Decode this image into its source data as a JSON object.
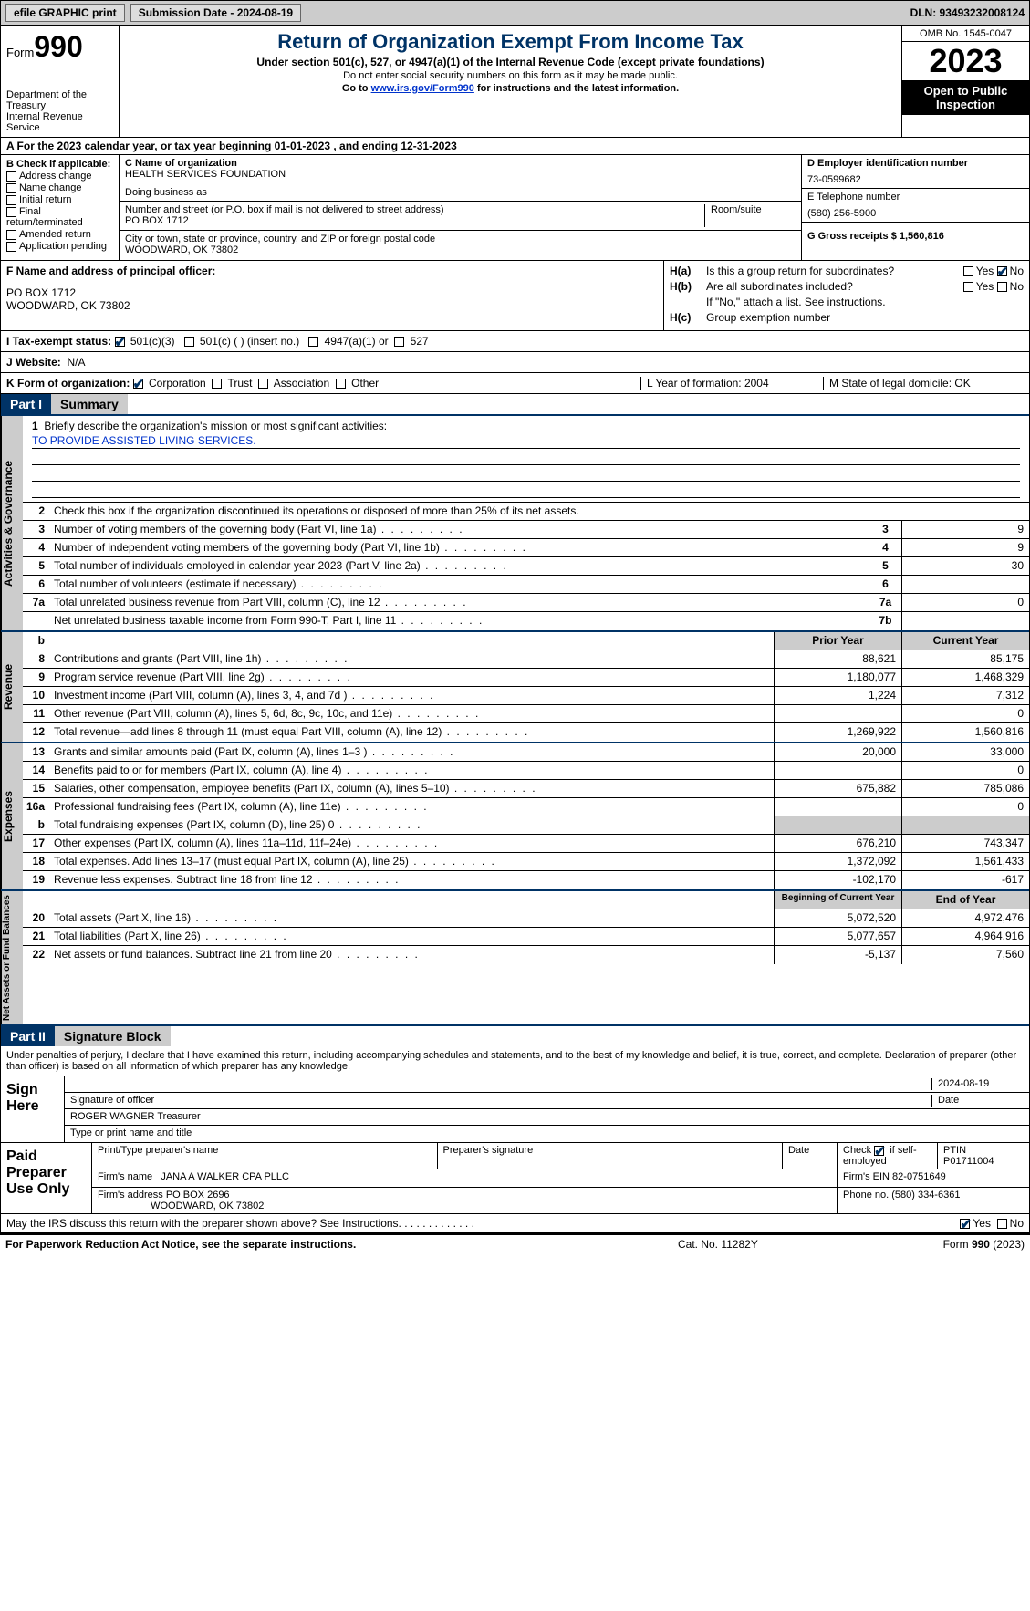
{
  "topbar": {
    "efile": "efile GRAPHIC print",
    "submission_label": "Submission Date - 2024-08-19",
    "dln_label": "DLN: 93493232008124"
  },
  "header": {
    "form_prefix": "Form",
    "form_num": "990",
    "dept": "Department of the Treasury",
    "irs": "Internal Revenue Service",
    "title": "Return of Organization Exempt From Income Tax",
    "sub": "Under section 501(c), 527, or 4947(a)(1) of the Internal Revenue Code (except private foundations)",
    "ssn": "Do not enter social security numbers on this form as it may be made public.",
    "goto": "Go to ",
    "goto_link": "www.irs.gov/Form990",
    "goto_after": " for instructions and the latest information.",
    "omb": "OMB No. 1545-0047",
    "year": "2023",
    "inspect": "Open to Public Inspection"
  },
  "row_a": "A For the 2023 calendar year, or tax year beginning 01-01-2023   , and ending 12-31-2023",
  "col_b": {
    "hdr": "B Check if applicable:",
    "items": [
      "Address change",
      "Name change",
      "Initial return",
      "Final return/terminated",
      "Amended return",
      "Application pending"
    ]
  },
  "col_c": {
    "name_lbl": "C Name of organization",
    "name": "HEALTH SERVICES FOUNDATION",
    "dba_lbl": "Doing business as",
    "addr_lbl": "Number and street (or P.O. box if mail is not delivered to street address)",
    "addr": "PO BOX 1712",
    "room_lbl": "Room/suite",
    "city_lbl": "City or town, state or province, country, and ZIP or foreign postal code",
    "city": "WOODWARD, OK   73802"
  },
  "col_d": {
    "ein_lbl": "D Employer identification number",
    "ein": "73-0599682",
    "tel_lbl": "E Telephone number",
    "tel": "(580) 256-5900",
    "gross_lbl": "G Gross receipts $ 1,560,816"
  },
  "row_f": {
    "lbl": "F  Name and address of principal officer:",
    "addr1": "PO BOX 1712",
    "addr2": "WOODWARD, OK   73802"
  },
  "row_h": {
    "ha_lbl": "H(a)",
    "ha_txt": "Is this a group return for subordinates?",
    "hb_lbl": "H(b)",
    "hb_txt": "Are all subordinates included?",
    "hb_note": "If \"No,\" attach a list. See instructions.",
    "hc_lbl": "H(c)",
    "hc_txt": "Group exemption number",
    "yes": "Yes",
    "no": "No"
  },
  "row_i": {
    "lbl": "I   Tax-exempt status:",
    "opt1": "501(c)(3)",
    "opt2": "501(c) (  ) (insert no.)",
    "opt3": "4947(a)(1) or",
    "opt4": "527"
  },
  "row_j": {
    "lbl": "J   Website:",
    "val": "N/A"
  },
  "row_k": {
    "lbl": "K Form of organization:",
    "opts": [
      "Corporation",
      "Trust",
      "Association",
      "Other"
    ],
    "l_lbl": "L Year of formation: 2004",
    "m_lbl": "M State of legal domicile: OK"
  },
  "part1": {
    "hdr": "Part I",
    "title": "Summary"
  },
  "mission": {
    "num": "1",
    "lbl": "Briefly describe the organization's mission or most significant activities:",
    "txt": "TO PROVIDE ASSISTED LIVING SERVICES."
  },
  "line2": {
    "num": "2",
    "txt": "Check this box     if the organization discontinued its operations or disposed of more than 25% of its net assets."
  },
  "sections": {
    "gov": "Activities & Governance",
    "rev": "Revenue",
    "exp": "Expenses",
    "net": "Net Assets or Fund Balances"
  },
  "lines_gov": [
    {
      "n": "3",
      "d": "Number of voting members of the governing body (Part VI, line 1a)",
      "b": "3",
      "v": "9"
    },
    {
      "n": "4",
      "d": "Number of independent voting members of the governing body (Part VI, line 1b)",
      "b": "4",
      "v": "9"
    },
    {
      "n": "5",
      "d": "Total number of individuals employed in calendar year 2023 (Part V, line 2a)",
      "b": "5",
      "v": "30"
    },
    {
      "n": "6",
      "d": "Total number of volunteers (estimate if necessary)",
      "b": "6",
      "v": ""
    },
    {
      "n": "7a",
      "d": "Total unrelated business revenue from Part VIII, column (C), line 12",
      "b": "7a",
      "v": "0"
    },
    {
      "n": "",
      "d": "Net unrelated business taxable income from Form 990-T, Part I, line 11",
      "b": "7b",
      "v": ""
    }
  ],
  "hdr_rev": {
    "b": "b",
    "d": "",
    "v1": "Prior Year",
    "v2": "Current Year"
  },
  "lines_rev": [
    {
      "n": "8",
      "d": "Contributions and grants (Part VIII, line 1h)",
      "v1": "88,621",
      "v2": "85,175"
    },
    {
      "n": "9",
      "d": "Program service revenue (Part VIII, line 2g)",
      "v1": "1,180,077",
      "v2": "1,468,329"
    },
    {
      "n": "10",
      "d": "Investment income (Part VIII, column (A), lines 3, 4, and 7d )",
      "v1": "1,224",
      "v2": "7,312"
    },
    {
      "n": "11",
      "d": "Other revenue (Part VIII, column (A), lines 5, 6d, 8c, 9c, 10c, and 11e)",
      "v1": "",
      "v2": "0"
    },
    {
      "n": "12",
      "d": "Total revenue—add lines 8 through 11 (must equal Part VIII, column (A), line 12)",
      "v1": "1,269,922",
      "v2": "1,560,816"
    }
  ],
  "lines_exp": [
    {
      "n": "13",
      "d": "Grants and similar amounts paid (Part IX, column (A), lines 1–3 )",
      "v1": "20,000",
      "v2": "33,000"
    },
    {
      "n": "14",
      "d": "Benefits paid to or for members (Part IX, column (A), line 4)",
      "v1": "",
      "v2": "0"
    },
    {
      "n": "15",
      "d": "Salaries, other compensation, employee benefits (Part IX, column (A), lines 5–10)",
      "v1": "675,882",
      "v2": "785,086"
    },
    {
      "n": "16a",
      "d": "Professional fundraising fees (Part IX, column (A), line 11e)",
      "v1": "",
      "v2": "0"
    },
    {
      "n": "b",
      "d": "Total fundraising expenses (Part IX, column (D), line 25) 0",
      "v1": "__GRAY__",
      "v2": "__GRAY__"
    },
    {
      "n": "17",
      "d": "Other expenses (Part IX, column (A), lines 11a–11d, 11f–24e)",
      "v1": "676,210",
      "v2": "743,347"
    },
    {
      "n": "18",
      "d": "Total expenses. Add lines 13–17 (must equal Part IX, column (A), line 25)",
      "v1": "1,372,092",
      "v2": "1,561,433"
    },
    {
      "n": "19",
      "d": "Revenue less expenses. Subtract line 18 from line 12",
      "v1": "-102,170",
      "v2": "-617"
    }
  ],
  "hdr_net": {
    "v1": "Beginning of Current Year",
    "v2": "End of Year"
  },
  "lines_net": [
    {
      "n": "20",
      "d": "Total assets (Part X, line 16)",
      "v1": "5,072,520",
      "v2": "4,972,476"
    },
    {
      "n": "21",
      "d": "Total liabilities (Part X, line 26)",
      "v1": "5,077,657",
      "v2": "4,964,916"
    },
    {
      "n": "22",
      "d": "Net assets or fund balances. Subtract line 21 from line 20",
      "v1": "-5,137",
      "v2": "7,560"
    }
  ],
  "part2": {
    "hdr": "Part II",
    "title": "Signature Block"
  },
  "sig": {
    "decl": "Under penalties of perjury, I declare that I have examined this return, including accompanying schedules and statements, and to the best of my knowledge and belief, it is true, correct, and complete. Declaration of preparer (other than officer) is based on all information of which preparer has any knowledge.",
    "here": "Sign Here",
    "sigoff_lbl": "Signature of officer",
    "date": "2024-08-19",
    "date_lbl": "Date",
    "name": "ROGER WAGNER  Treasurer",
    "name_lbl": "Type or print name and title"
  },
  "paid": {
    "lbl": "Paid Preparer Use Only",
    "h1": "Print/Type preparer's name",
    "h2": "Preparer's signature",
    "h3": "Date",
    "h4_a": "Check",
    "h4_b": "if self-employed",
    "h5": "PTIN",
    "ptin": "P01711004",
    "firm_lbl": "Firm's name",
    "firm": "JANA A WALKER CPA PLLC",
    "ein_lbl": "Firm's EIN",
    "ein": "82-0751649",
    "addr_lbl": "Firm's address",
    "addr1": "PO BOX 2696",
    "addr2": "WOODWARD, OK   73802",
    "phone_lbl": "Phone no.",
    "phone": "(580) 334-6361"
  },
  "discuss": {
    "txt": "May the IRS discuss this return with the preparer shown above? See Instructions.",
    "yes": "Yes",
    "no": "No"
  },
  "footer": {
    "l": "For Paperwork Reduction Act Notice, see the separate instructions.",
    "m": "Cat. No. 11282Y",
    "r_a": "Form ",
    "r_b": "990",
    "r_c": " (2023)"
  }
}
